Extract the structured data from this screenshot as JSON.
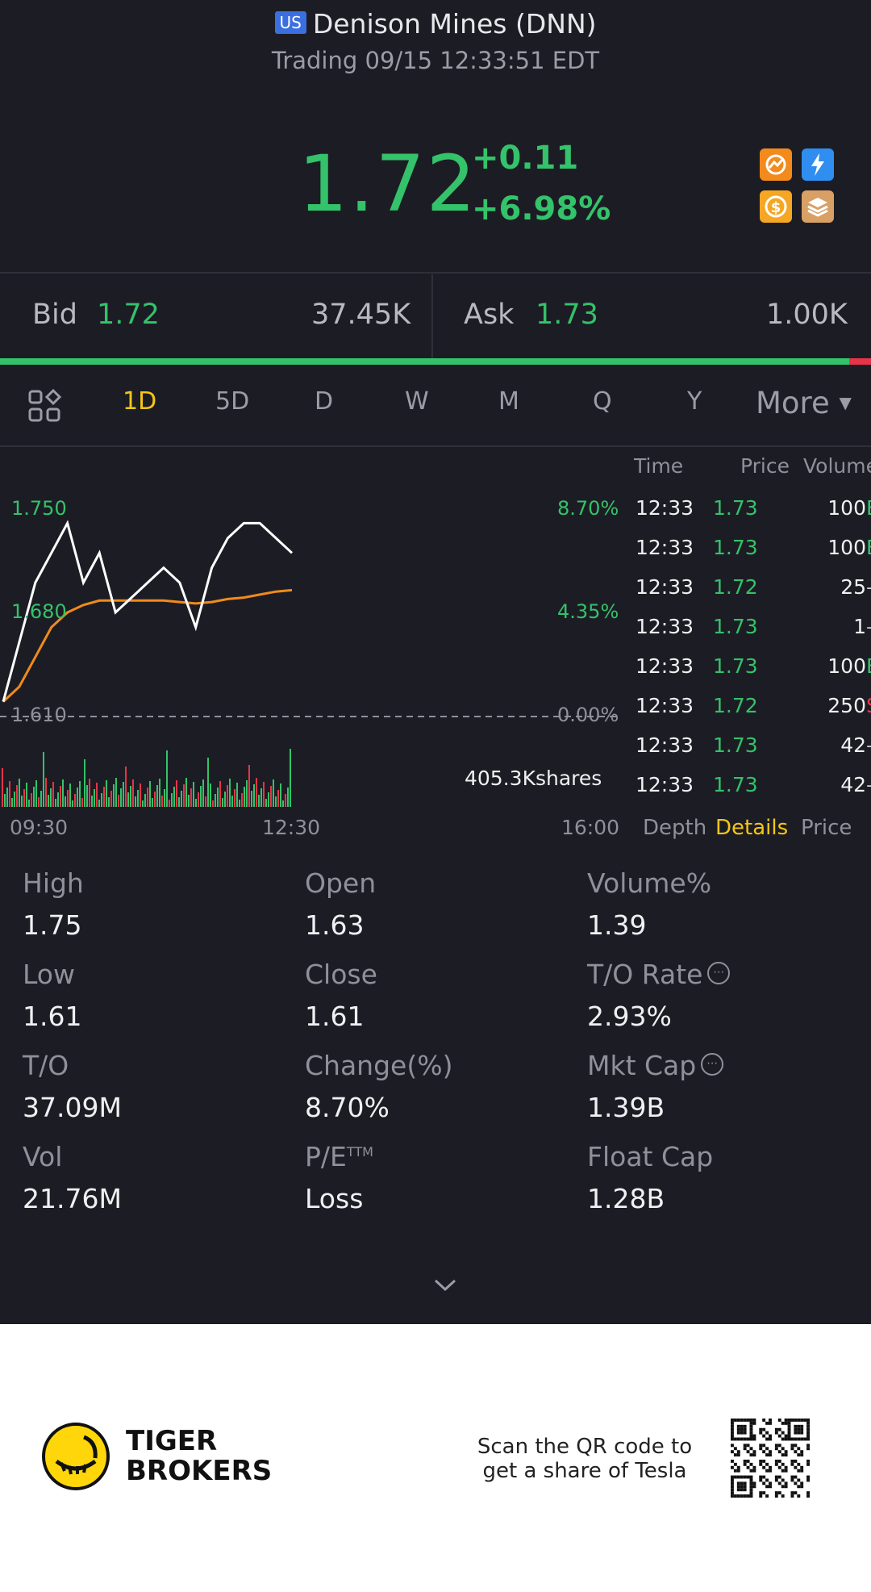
{
  "header": {
    "market_badge": "US",
    "title": "Denison Mines (DNN)",
    "subtitle": "Trading 09/15 12:33:51 EDT"
  },
  "quote": {
    "price": "1.72",
    "change": "+0.11",
    "change_pct": "+6.98%",
    "color_up": "#34c26a"
  },
  "icons": [
    "chart-swap-icon",
    "lightning-icon",
    "dollar-icon",
    "stack-icon"
  ],
  "bid_ask": {
    "bid_label": "Bid",
    "bid_price": "1.72",
    "bid_size": "37.45K",
    "ask_label": "Ask",
    "ask_price": "1.73",
    "ask_size": "1.00K",
    "bid_ratio": 0.975
  },
  "tabs": {
    "items": [
      "1D",
      "5D",
      "D",
      "W",
      "M",
      "Q",
      "Y"
    ],
    "active": "1D",
    "more": "More",
    "active_color": "#f5c518"
  },
  "chart": {
    "y_labels": [
      "1.750",
      "1.680",
      "1.610"
    ],
    "pct_labels": [
      "8.70%",
      "4.35%",
      "0.00%"
    ],
    "x_labels": [
      "09:30",
      "12:30",
      "16:00"
    ],
    "volume_label": "405.3Kshares"
  },
  "chart_data": {
    "type": "line",
    "ylim": [
      1.61,
      1.75
    ],
    "series": [
      {
        "x": [
          "09:30",
          "09:40",
          "09:50",
          "10:00",
          "10:10",
          "10:20",
          "10:30",
          "10:40",
          "10:50",
          "11:00",
          "11:10",
          "11:20",
          "11:30",
          "11:40",
          "11:50",
          "12:00",
          "12:10",
          "12:20",
          "12:30"
        ],
        "values": [
          1.62,
          1.66,
          1.7,
          1.72,
          1.74,
          1.7,
          1.72,
          1.68,
          1.69,
          1.7,
          1.71,
          1.7,
          1.67,
          1.71,
          1.73,
          1.74,
          1.74,
          1.73,
          1.72
        ]
      },
      {
        "x": [
          "09:30",
          "09:40",
          "09:50",
          "10:00",
          "10:10",
          "10:20",
          "10:30",
          "10:40",
          "10:50",
          "11:00",
          "11:10",
          "11:20",
          "11:30",
          "11:40",
          "11:50",
          "12:00",
          "12:10",
          "12:20",
          "12:30"
        ],
        "values": [
          1.62,
          1.63,
          1.65,
          1.67,
          1.68,
          1.685,
          1.688,
          1.688,
          1.688,
          1.688,
          1.688,
          1.687,
          1.686,
          1.687,
          1.689,
          1.69,
          1.692,
          1.694,
          1.695
        ]
      }
    ]
  },
  "time_trades": {
    "headers": [
      "Time",
      "Price",
      "Volume"
    ],
    "rows": [
      {
        "time": "12:33",
        "price": "1.73",
        "vol": "100",
        "flag": "B"
      },
      {
        "time": "12:33",
        "price": "1.73",
        "vol": "100",
        "flag": "B"
      },
      {
        "time": "12:33",
        "price": "1.72",
        "vol": "25",
        "flag": "–"
      },
      {
        "time": "12:33",
        "price": "1.73",
        "vol": "1",
        "flag": "–"
      },
      {
        "time": "12:33",
        "price": "1.73",
        "vol": "100",
        "flag": "B"
      },
      {
        "time": "12:33",
        "price": "1.72",
        "vol": "250",
        "flag": "S"
      },
      {
        "time": "12:33",
        "price": "1.73",
        "vol": "42",
        "flag": "–"
      },
      {
        "time": "12:33",
        "price": "1.73",
        "vol": "42",
        "flag": "–"
      }
    ],
    "subtabs": [
      "Depth",
      "Details",
      "Price"
    ],
    "active_subtab": "Details"
  },
  "stats": [
    {
      "label": "High",
      "value": "1.75"
    },
    {
      "label": "Open",
      "value": "1.63"
    },
    {
      "label": "Volume%",
      "value": "1.39"
    },
    {
      "label": "Low",
      "value": "1.61"
    },
    {
      "label": "Close",
      "value": "1.61"
    },
    {
      "label": "T/O Rate",
      "value": "2.93%"
    },
    {
      "label": "T/O",
      "value": "37.09M"
    },
    {
      "label": "Change(%)",
      "value": "8.70%"
    },
    {
      "label": "Mkt Cap",
      "value": "1.39B"
    },
    {
      "label": "Vol",
      "value": "21.76M"
    },
    {
      "label": "P/E",
      "value": "Loss"
    },
    {
      "label": "Float Cap",
      "value": "1.28B"
    }
  ],
  "pe_superscript": "TTM",
  "footer": {
    "brand_line1": "TIGER",
    "brand_line2": "BROKERS",
    "cta_line1": "Scan the QR code to",
    "cta_line2": "get a share of Tesla"
  }
}
